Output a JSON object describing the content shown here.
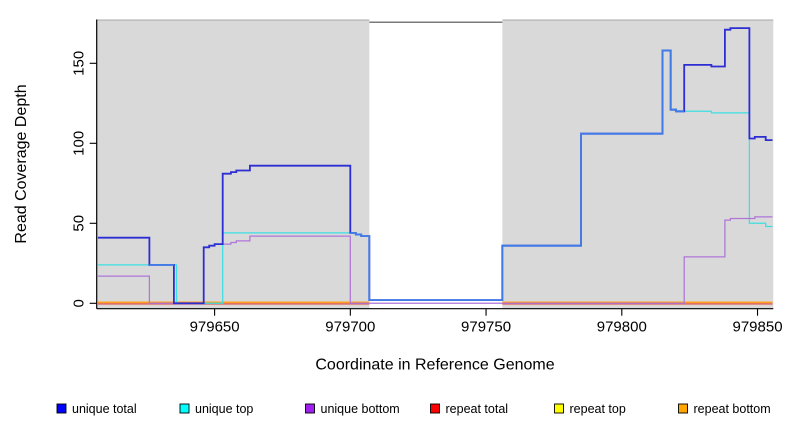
{
  "chart_data": {
    "type": "line",
    "step": true,
    "title": "",
    "xlabel": "Coordinate in Reference Genome",
    "ylabel": "Read Coverage Depth",
    "xlim": [
      979607,
      979856
    ],
    "ylim": [
      0,
      177
    ],
    "grid": false,
    "panel_background": "#d9d9d9",
    "panel_top_border_color": "#a8a8a8",
    "masked_region": {
      "x0": 979707,
      "x1": 979756,
      "color": "#ffffff",
      "top_line_color": "#4f4f4f"
    },
    "overlap_line_color": "#3f7ce8",
    "x_ticks": {
      "values": [
        979650,
        979700,
        979750,
        979800,
        979850
      ],
      "labels": [
        "979650",
        "979700",
        "979750",
        "979800",
        "979850"
      ]
    },
    "y_ticks": {
      "values": [
        0,
        50,
        100,
        150
      ],
      "labels": [
        "0",
        "50",
        "100",
        "150"
      ]
    },
    "series": [
      {
        "name": "repeat total",
        "color": "#ff0000",
        "line_color": "#e03c3c",
        "points": [
          [
            979607,
            0
          ],
          [
            979707,
            null
          ],
          [
            979756,
            0
          ]
        ]
      },
      {
        "name": "repeat top",
        "color": "#ffff00",
        "line_color": "#ffe000",
        "points": [
          [
            979607,
            0
          ],
          [
            979707,
            null
          ],
          [
            979756,
            0
          ]
        ]
      },
      {
        "name": "repeat bottom",
        "color": "#ffa500",
        "line_color": "#ff9f1a",
        "points": [
          [
            979607,
            0
          ],
          [
            979707,
            null
          ],
          [
            979756,
            0
          ]
        ]
      },
      {
        "name": "unique top",
        "color": "#00ffff",
        "line_color": "#3cdfe2",
        "points": [
          [
            979607,
            24
          ],
          [
            979636,
            0
          ],
          [
            979653,
            44
          ],
          [
            979702,
            43
          ],
          [
            979704,
            42
          ],
          [
            979707,
            2
          ],
          [
            979756,
            36
          ],
          [
            979785,
            106
          ],
          [
            979815,
            158
          ],
          [
            979818,
            121
          ],
          [
            979820,
            120
          ],
          [
            979833,
            119
          ],
          [
            979847,
            50
          ],
          [
            979853,
            48
          ]
        ]
      },
      {
        "name": "unique bottom",
        "color": "#a020f0",
        "line_color": "#ae76d9",
        "points": [
          [
            979607,
            17
          ],
          [
            979626,
            0
          ],
          [
            979646,
            35
          ],
          [
            979648,
            36
          ],
          [
            979650,
            37
          ],
          [
            979656,
            38
          ],
          [
            979658,
            39
          ],
          [
            979663,
            42
          ],
          [
            979700,
            0
          ],
          [
            979823,
            29
          ],
          [
            979838,
            52
          ],
          [
            979840,
            53
          ],
          [
            979849,
            54
          ]
        ]
      },
      {
        "name": "unique total",
        "color": "#0000ff",
        "line_color": "#2d2dd4",
        "points": [
          [
            979607,
            41
          ],
          [
            979626,
            24
          ],
          [
            979635,
            0
          ],
          [
            979646,
            35
          ],
          [
            979648,
            36
          ],
          [
            979650,
            37
          ],
          [
            979653,
            81
          ],
          [
            979656,
            82
          ],
          [
            979658,
            83
          ],
          [
            979663,
            86
          ],
          [
            979700,
            44
          ],
          [
            979702,
            43
          ],
          [
            979704,
            42
          ],
          [
            979707,
            2
          ],
          [
            979756,
            36
          ],
          [
            979785,
            106
          ],
          [
            979815,
            158
          ],
          [
            979818,
            121
          ],
          [
            979820,
            120
          ],
          [
            979823,
            149
          ],
          [
            979833,
            148
          ],
          [
            979838,
            171
          ],
          [
            979840,
            172
          ],
          [
            979847,
            103
          ],
          [
            979849,
            104
          ],
          [
            979853,
            102
          ]
        ]
      }
    ],
    "legend": {
      "position": "bottom",
      "entries": [
        {
          "label": "unique total",
          "color": "#0000ff"
        },
        {
          "label": "unique top",
          "color": "#00ffff"
        },
        {
          "label": "unique bottom",
          "color": "#a020f0"
        },
        {
          "label": "repeat total",
          "color": "#ff0000"
        },
        {
          "label": "repeat top",
          "color": "#ffff00"
        },
        {
          "label": "repeat bottom",
          "color": "#ffa500"
        }
      ]
    }
  }
}
